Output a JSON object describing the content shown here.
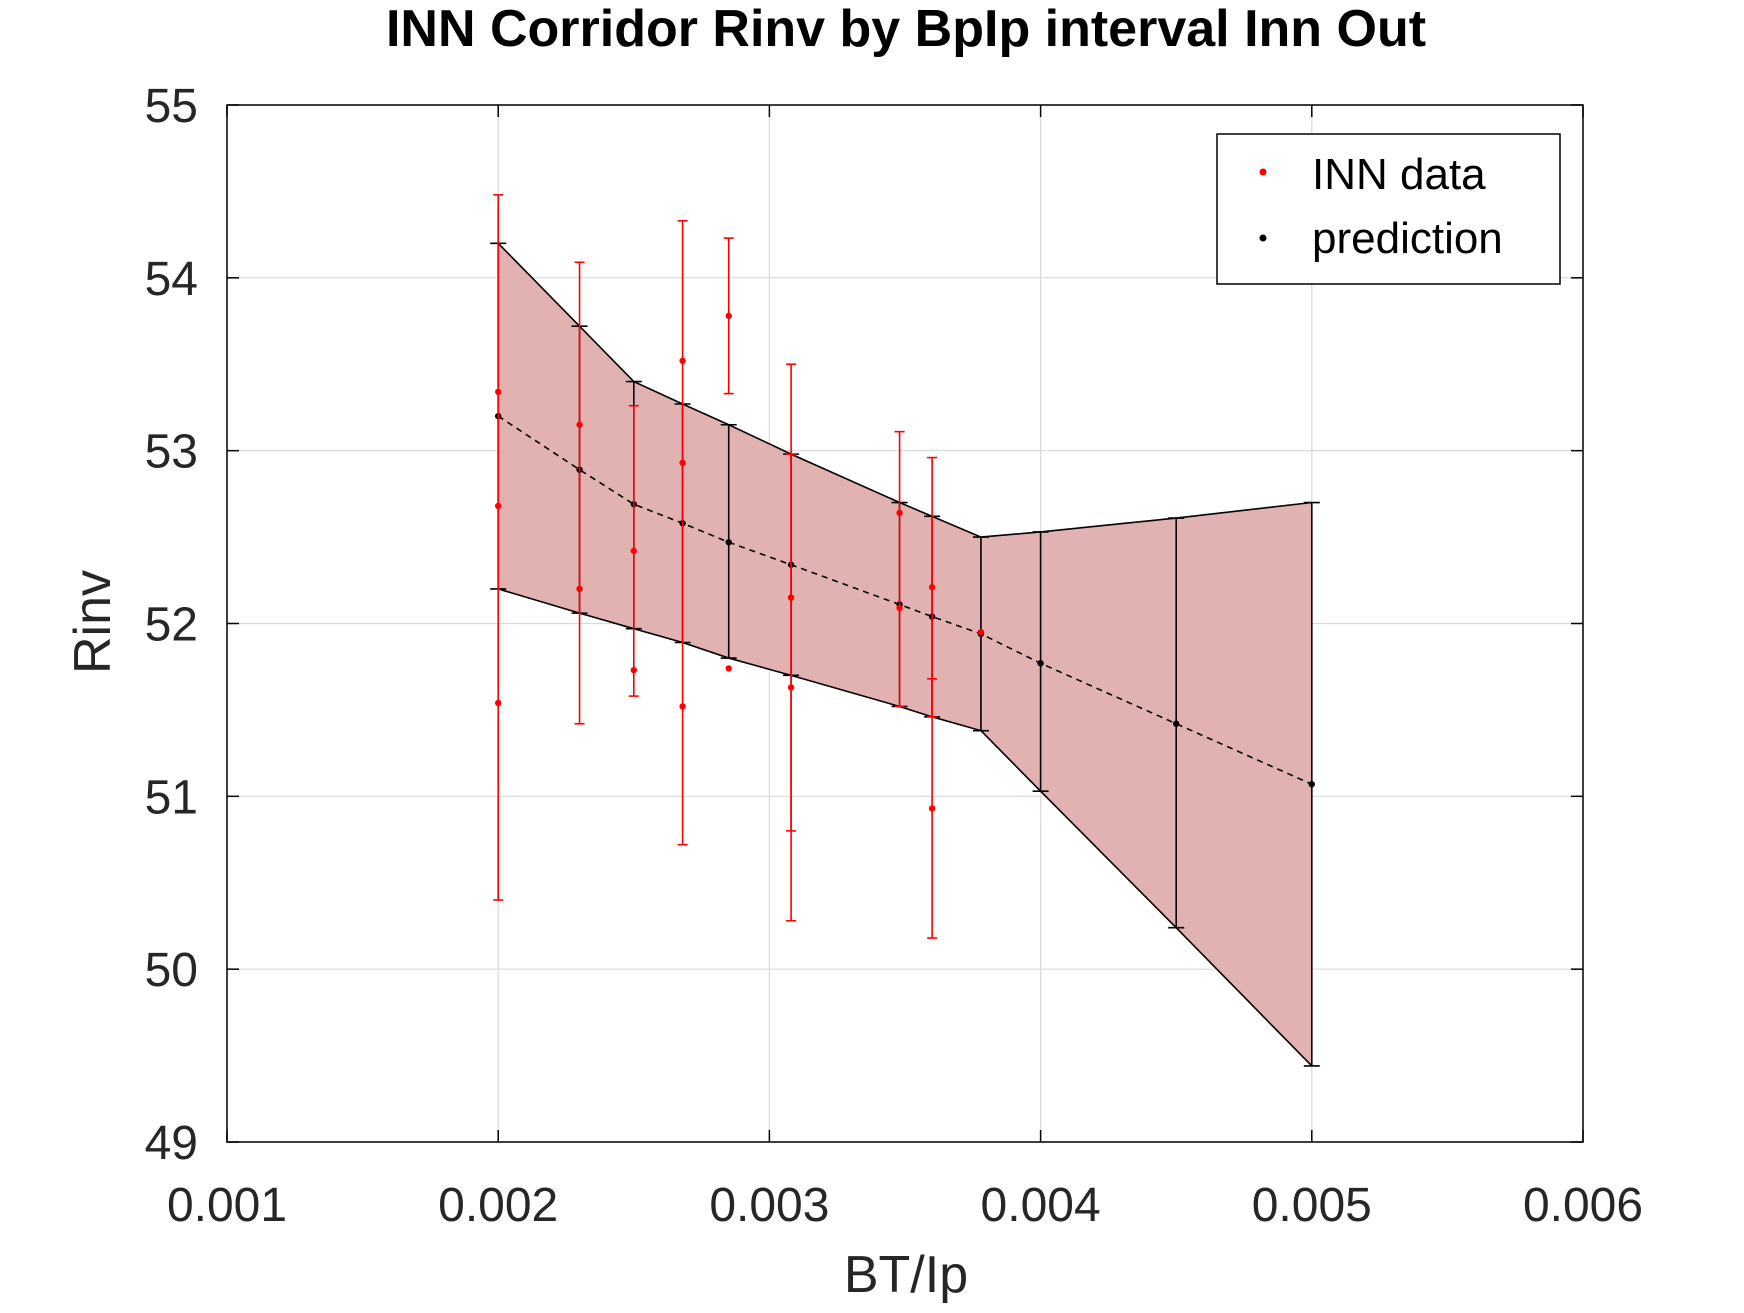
{
  "chart_data": {
    "type": "scatter",
    "title": "INN Corridor Rinv by BpIp interval Inn Out",
    "xlabel": "BT/Ip",
    "ylabel": "Rinv",
    "xlim": [
      0.001,
      0.006
    ],
    "ylim": [
      49,
      55
    ],
    "xticks": [
      0.001,
      0.002,
      0.003,
      0.004,
      0.005,
      0.006
    ],
    "xtick_labels": [
      "0.001",
      "0.002",
      "0.003",
      "0.004",
      "0.005",
      "0.006"
    ],
    "yticks": [
      49,
      50,
      51,
      52,
      53,
      54,
      55
    ],
    "ytick_labels": [
      "49",
      "50",
      "51",
      "52",
      "53",
      "54",
      "55"
    ],
    "grid": true,
    "legend_position": "top-right",
    "colors": {
      "data": "#ff0000",
      "prediction": "#000000",
      "band": "#e2b2b2",
      "grid": "#d9d9d9",
      "axes": "#000000"
    },
    "series": [
      {
        "name": "INN data",
        "color": "#ff0000",
        "points": [
          {
            "x": 0.002,
            "y": 53.34
          },
          {
            "x": 0.002,
            "y": 52.68
          },
          {
            "x": 0.002,
            "y": 51.54,
            "lo": 50.4,
            "hi": 54.48
          },
          {
            "x": 0.0023,
            "y": 53.15,
            "lo": 51.42,
            "hi": 54.09
          },
          {
            "x": 0.0023,
            "y": 52.2
          },
          {
            "x": 0.0025,
            "y": 52.42,
            "lo": 51.58,
            "hi": 53.26
          },
          {
            "x": 0.0025,
            "y": 51.73
          },
          {
            "x": 0.00268,
            "y": 52.93,
            "lo": 50.72,
            "hi": 54.33
          },
          {
            "x": 0.00268,
            "y": 53.52
          },
          {
            "x": 0.00268,
            "y": 51.52
          },
          {
            "x": 0.00285,
            "y": 53.78,
            "lo": 53.33,
            "hi": 54.23
          },
          {
            "x": 0.00285,
            "y": 51.74
          },
          {
            "x": 0.00308,
            "y": 52.15,
            "lo": 50.8,
            "hi": 53.5
          },
          {
            "x": 0.00308,
            "y": 51.63,
            "lo": 50.28,
            "hi": 52.98
          },
          {
            "x": 0.00348,
            "y": 52.09,
            "lo": 51.52,
            "hi": 53.11
          },
          {
            "x": 0.00348,
            "y": 52.64
          },
          {
            "x": 0.0036,
            "y": 52.21,
            "lo": 51.46,
            "hi": 52.96
          },
          {
            "x": 0.0036,
            "y": 50.93,
            "lo": 50.18,
            "hi": 51.68
          },
          {
            "x": 0.00378,
            "y": 51.95
          }
        ]
      },
      {
        "name": "prediction",
        "color": "#000000",
        "linestyle": "dashed",
        "points": [
          {
            "x": 0.002,
            "y": 53.2,
            "lo": 52.2,
            "hi": 54.2
          },
          {
            "x": 0.0023,
            "y": 52.89,
            "lo": 52.06,
            "hi": 53.72
          },
          {
            "x": 0.0025,
            "y": 52.69,
            "lo": 51.97,
            "hi": 53.4
          },
          {
            "x": 0.00268,
            "y": 52.58,
            "lo": 51.89,
            "hi": 53.27
          },
          {
            "x": 0.00285,
            "y": 52.47,
            "lo": 51.8,
            "hi": 53.15
          },
          {
            "x": 0.00308,
            "y": 52.34,
            "lo": 51.7,
            "hi": 52.98
          },
          {
            "x": 0.00348,
            "y": 52.11,
            "lo": 51.52,
            "hi": 52.7
          },
          {
            "x": 0.0036,
            "y": 52.04,
            "lo": 51.46,
            "hi": 52.62
          },
          {
            "x": 0.00378,
            "y": 51.94,
            "lo": 51.38,
            "hi": 52.5
          },
          {
            "x": 0.004,
            "y": 51.77,
            "lo": 51.03,
            "hi": 52.53
          },
          {
            "x": 0.0045,
            "y": 51.42,
            "lo": 50.24,
            "hi": 52.61
          },
          {
            "x": 0.005,
            "y": 51.07,
            "lo": 49.44,
            "hi": 52.7
          }
        ]
      }
    ]
  }
}
